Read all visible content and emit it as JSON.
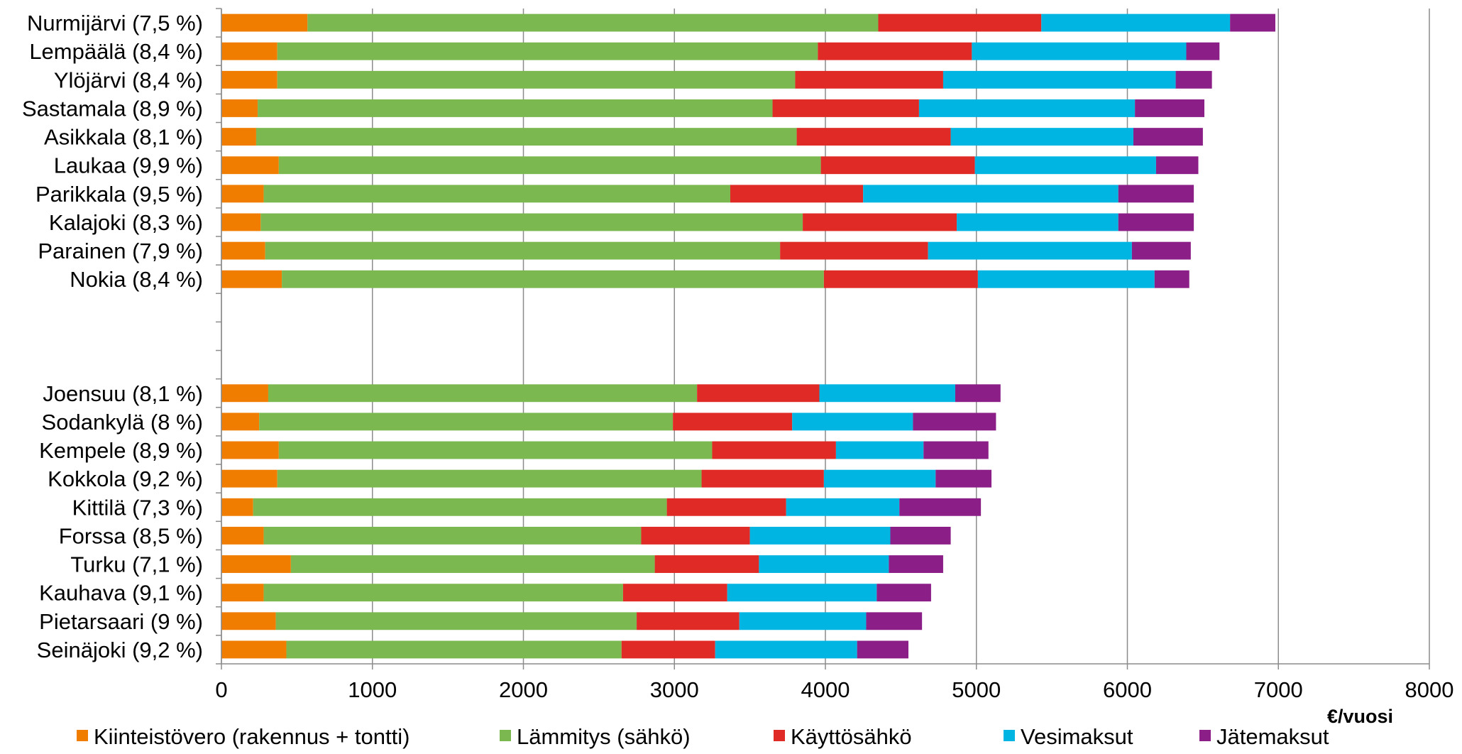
{
  "chart_data": {
    "type": "bar",
    "orientation": "horizontal",
    "stacked": true,
    "title": "",
    "xlabel": "€/vuosi",
    "ylabel": "",
    "xlim": [
      0,
      8000
    ],
    "xticks": [
      0,
      1000,
      2000,
      3000,
      4000,
      5000,
      6000,
      7000,
      8000
    ],
    "grid": true,
    "legend_position": "bottom",
    "categories": [
      "Nurmijärvi (7,5 %)",
      "Lempäälä (8,4 %)",
      "Ylöjärvi (8,4 %)",
      "Sastamala (8,9 %)",
      "Asikkala (8,1 %)",
      "Laukaa (9,9 %)",
      "Parikkala (9,5 %)",
      "Kalajoki (8,3 %)",
      "Parainen (7,9 %)",
      "Nokia (8,4 %)",
      "",
      "",
      "",
      "Joensuu (8,1 %)",
      "Sodankylä (8 %)",
      "Kempele (8,9 %)",
      "Kokkola (9,2 %)",
      "Kittilä (7,3 %)",
      "Forssa (8,5 %)",
      "Turku (7,1 %)",
      "Kauhava (9,1 %)",
      "Pietarsaari (9 %)",
      "Seinäjoki (9,2 %)"
    ],
    "series": [
      {
        "name": "Kiinteistövero (rakennus + tontti)",
        "color": "#F07D00",
        "values": [
          570,
          370,
          370,
          240,
          230,
          380,
          280,
          260,
          290,
          400,
          null,
          null,
          null,
          310,
          250,
          380,
          370,
          210,
          280,
          460,
          280,
          360,
          430
        ]
      },
      {
        "name": "Lämmitys (sähkö)",
        "color": "#7CB850",
        "values": [
          3780,
          3580,
          3430,
          3410,
          3580,
          3590,
          3090,
          3590,
          3410,
          3590,
          null,
          null,
          null,
          2840,
          2740,
          2870,
          2810,
          2740,
          2500,
          2410,
          2380,
          2390,
          2220
        ]
      },
      {
        "name": "Käyttösähkö",
        "color": "#E02A26",
        "values": [
          1080,
          1020,
          980,
          970,
          1020,
          1020,
          880,
          1020,
          980,
          1020,
          null,
          null,
          null,
          810,
          790,
          820,
          810,
          790,
          720,
          690,
          690,
          680,
          620
        ]
      },
      {
        "name": "Vesimaksut",
        "color": "#00B5E2",
        "values": [
          1250,
          1420,
          1540,
          1430,
          1210,
          1200,
          1690,
          1070,
          1350,
          1170,
          null,
          null,
          null,
          900,
          800,
          580,
          740,
          750,
          930,
          860,
          990,
          840,
          940
        ]
      },
      {
        "name": "Jätemaksut",
        "color": "#8B1F87",
        "values": [
          300,
          220,
          240,
          460,
          460,
          280,
          500,
          500,
          390,
          230,
          null,
          null,
          null,
          300,
          550,
          430,
          370,
          540,
          400,
          360,
          360,
          370,
          340
        ]
      }
    ]
  }
}
